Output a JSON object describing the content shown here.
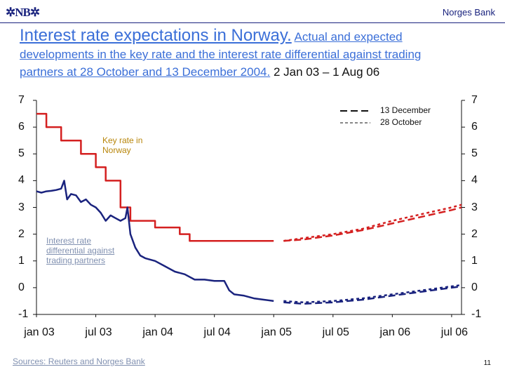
{
  "header": {
    "logo_text": "✲NB✲",
    "org": "Norges Bank"
  },
  "title": {
    "lead": "Interest rate expectations in Norway.",
    "line1_rest": "Actual and expected",
    "line2": "developments in the key rate and the interest rate differential against trading",
    "line3": "partners at 28 October and 13 December 2004.",
    "period": "2 Jan 03 – 1 Aug 06"
  },
  "footer": {
    "source": "Sources: Reuters and Norges Bank",
    "page_number": "11"
  },
  "chart_data": {
    "type": "line",
    "title": "Interest rate expectations in Norway",
    "ylim": [
      -1,
      7
    ],
    "yticks_left": [
      "7",
      "6",
      "5",
      "4",
      "3",
      "2",
      "1",
      "0",
      "-1"
    ],
    "yticks_right": [
      "7",
      "6",
      "5",
      "4",
      "3",
      "2",
      "1",
      "0",
      "-1"
    ],
    "x_ticks": [
      "jan 03",
      "jul 03",
      "jan 04",
      "jul 04",
      "jan 05",
      "jul 05",
      "jan 06",
      "jul 06"
    ],
    "xlim_months": [
      0,
      43
    ],
    "legend": {
      "position": "top-right",
      "entries": [
        {
          "label": "13 December",
          "style": "long-dash"
        },
        {
          "label": "28 October",
          "style": "short-dash"
        }
      ]
    },
    "annotations": [
      {
        "label_line1": "Key rate in",
        "label_line2": "Norway",
        "color": "#b8860b"
      },
      {
        "label_line1": "Interest rate",
        "label_line2": "differential against",
        "label_line3": "trading partners",
        "color": "#8090b0"
      }
    ],
    "colors": {
      "key_rate": "#d42020",
      "differential": "#1a237e",
      "axis": "#111111"
    },
    "series": [
      {
        "name": "Key rate (actual)",
        "style": "solid",
        "color_key": "key_rate",
        "points": [
          [
            0,
            6.5
          ],
          [
            1,
            6.5
          ],
          [
            1,
            6.0
          ],
          [
            2.5,
            6.0
          ],
          [
            2.5,
            5.5
          ],
          [
            4.5,
            5.5
          ],
          [
            4.5,
            5.0
          ],
          [
            6,
            5.0
          ],
          [
            6,
            4.5
          ],
          [
            7,
            4.5
          ],
          [
            7,
            4.0
          ],
          [
            8.5,
            4.0
          ],
          [
            8.5,
            3.0
          ],
          [
            9.5,
            3.0
          ],
          [
            9.5,
            2.5
          ],
          [
            12,
            2.5
          ],
          [
            12,
            2.25
          ],
          [
            14.5,
            2.25
          ],
          [
            14.5,
            2.0
          ],
          [
            15.5,
            2.0
          ],
          [
            15.5,
            1.75
          ],
          [
            24,
            1.75
          ]
        ]
      },
      {
        "name": "Key rate expected, 13 December",
        "style": "long-dash",
        "color_key": "key_rate",
        "points": [
          [
            25,
            1.75
          ],
          [
            27,
            1.8
          ],
          [
            30,
            1.95
          ],
          [
            33,
            2.15
          ],
          [
            36,
            2.4
          ],
          [
            39,
            2.65
          ],
          [
            42,
            2.9
          ],
          [
            43,
            3.0
          ]
        ]
      },
      {
        "name": "Key rate expected, 28 October",
        "style": "short-dash",
        "color_key": "key_rate",
        "points": [
          [
            25,
            1.75
          ],
          [
            27,
            1.85
          ],
          [
            30,
            2.0
          ],
          [
            33,
            2.2
          ],
          [
            36,
            2.5
          ],
          [
            39,
            2.75
          ],
          [
            42,
            3.0
          ],
          [
            43,
            3.1
          ]
        ]
      },
      {
        "name": "Interest rate differential (actual)",
        "style": "solid",
        "color_key": "differential",
        "points": [
          [
            0,
            3.6
          ],
          [
            0.5,
            3.55
          ],
          [
            1,
            3.6
          ],
          [
            1.5,
            3.62
          ],
          [
            2,
            3.65
          ],
          [
            2.5,
            3.7
          ],
          [
            2.8,
            4.0
          ],
          [
            3.1,
            3.3
          ],
          [
            3.5,
            3.5
          ],
          [
            4,
            3.45
          ],
          [
            4.5,
            3.2
          ],
          [
            5,
            3.3
          ],
          [
            5.5,
            3.1
          ],
          [
            6,
            3.0
          ],
          [
            6.5,
            2.8
          ],
          [
            7,
            2.5
          ],
          [
            7.5,
            2.7
          ],
          [
            8,
            2.6
          ],
          [
            8.5,
            2.5
          ],
          [
            9,
            2.6
          ],
          [
            9.2,
            3.0
          ],
          [
            9.5,
            2.0
          ],
          [
            10,
            1.5
          ],
          [
            10.5,
            1.2
          ],
          [
            11,
            1.1
          ],
          [
            12,
            1.0
          ],
          [
            13,
            0.8
          ],
          [
            14,
            0.6
          ],
          [
            15,
            0.5
          ],
          [
            16,
            0.3
          ],
          [
            17,
            0.3
          ],
          [
            18,
            0.25
          ],
          [
            19,
            0.25
          ],
          [
            19.5,
            -0.1
          ],
          [
            20,
            -0.25
          ],
          [
            21,
            -0.3
          ],
          [
            22,
            -0.4
          ],
          [
            23,
            -0.45
          ],
          [
            24,
            -0.5
          ]
        ]
      },
      {
        "name": "Differential expected, 13 December",
        "style": "long-dash",
        "color_key": "differential",
        "points": [
          [
            25,
            -0.55
          ],
          [
            27,
            -0.6
          ],
          [
            30,
            -0.55
          ],
          [
            33,
            -0.45
          ],
          [
            36,
            -0.3
          ],
          [
            39,
            -0.15
          ],
          [
            42,
            0.0
          ],
          [
            43,
            0.05
          ]
        ]
      },
      {
        "name": "Differential expected, 28 October",
        "style": "short-dash",
        "color_key": "differential",
        "points": [
          [
            25,
            -0.5
          ],
          [
            27,
            -0.55
          ],
          [
            30,
            -0.5
          ],
          [
            33,
            -0.4
          ],
          [
            36,
            -0.25
          ],
          [
            39,
            -0.1
          ],
          [
            42,
            0.05
          ],
          [
            43,
            0.1
          ]
        ]
      }
    ]
  }
}
